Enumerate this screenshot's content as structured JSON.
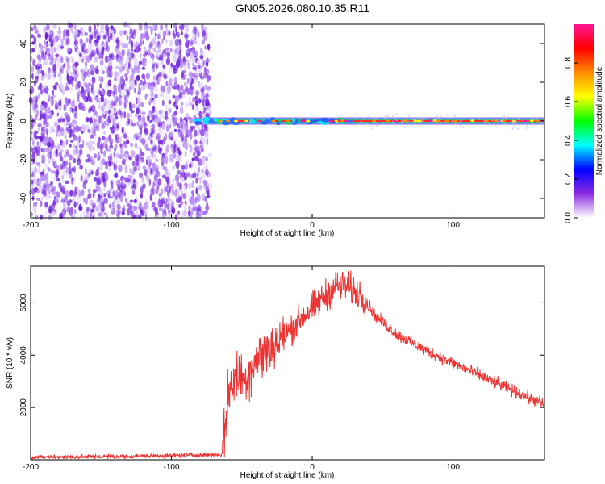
{
  "title": "GN05.2026.080.10.35.R11",
  "chart_data": [
    {
      "type": "heatmap",
      "name": "spectrogram",
      "xlabel": "Height of straight line (km)",
      "ylabel": "Frequency (Hz)",
      "xlim": [
        -200,
        165
      ],
      "ylim": [
        -50,
        50
      ],
      "xticks": [
        -200,
        -100,
        0,
        100
      ],
      "yticks": [
        -40,
        -20,
        0,
        20,
        40
      ],
      "noise_region_x": [
        -200,
        -72
      ],
      "signal_band_start_x": -83,
      "signal_center_frequency": 0,
      "colorbar": {
        "label": "Normalized spectral amplitude",
        "range": [
          0,
          1
        ],
        "ticks": [
          0.0,
          0.2,
          0.4,
          0.6,
          0.8
        ],
        "tick_labels": [
          "0.0",
          "0.2",
          "0.4",
          "0.6",
          "0.8"
        ],
        "colormap": [
          "#ffffff",
          "#8a2be2",
          "#0000ff",
          "#00ffff",
          "#00ff00",
          "#ffff00",
          "#ff8c00",
          "#ff0000",
          "#ff1493"
        ]
      }
    },
    {
      "type": "line",
      "name": "snr",
      "xlabel": "Height of straight line (km)",
      "ylabel": "SNR (10 * v/v)",
      "xlim": [
        -200,
        165
      ],
      "ylim": [
        0,
        7400
      ],
      "xticks": [
        -200,
        -100,
        0,
        100
      ],
      "yticks": [
        2000,
        4000,
        6000
      ],
      "color": "#ee3333",
      "profile_x": [
        -200,
        -130,
        -64,
        -60,
        -55,
        -48,
        -40,
        -30,
        -20,
        -10,
        0,
        10,
        18,
        25,
        35,
        45,
        60,
        80,
        100,
        120,
        140,
        165
      ],
      "profile_y": [
        100,
        130,
        200,
        2300,
        3200,
        3100,
        3800,
        4300,
        4700,
        5300,
        5800,
        6300,
        6700,
        6600,
        6300,
        5500,
        4800,
        4200,
        3700,
        3200,
        2700,
        2100
      ],
      "noise_amplitude": [
        {
          "x_from": -200,
          "x_to": -64,
          "amplitude": 120
        },
        {
          "x_from": -64,
          "x_to": -20,
          "amplitude": 1500
        },
        {
          "x_from": -20,
          "x_to": 40,
          "amplitude": 900
        },
        {
          "x_from": 40,
          "x_to": 165,
          "amplitude": 350
        }
      ]
    }
  ]
}
